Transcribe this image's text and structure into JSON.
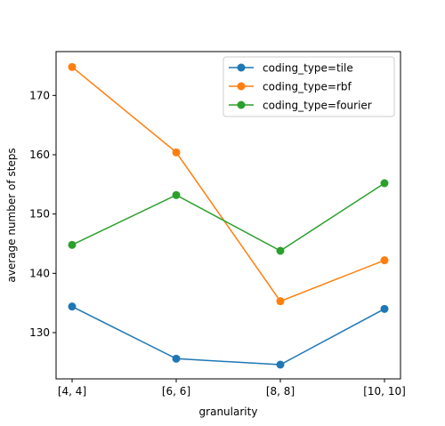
{
  "chart_data": {
    "type": "line",
    "title": "",
    "xlabel": "granularity",
    "ylabel": "average number of steps",
    "categories": [
      "[4, 4]",
      "[6, 6]",
      "[8, 8]",
      "[10, 10]"
    ],
    "ylim": [
      122.2,
      177.4
    ],
    "yticks": [
      130,
      140,
      150,
      160,
      170
    ],
    "grid": false,
    "legend_position": "upper right",
    "series": [
      {
        "name": "coding_type=tile",
        "color": "#1f77b4",
        "values": [
          134.4,
          125.6,
          124.6,
          134.0
        ]
      },
      {
        "name": "coding_type=rbf",
        "color": "#ff7f0e",
        "values": [
          174.8,
          160.4,
          135.3,
          142.2
        ]
      },
      {
        "name": "coding_type=fourier",
        "color": "#2ca02c",
        "values": [
          144.8,
          153.2,
          143.8,
          155.2
        ]
      }
    ]
  }
}
